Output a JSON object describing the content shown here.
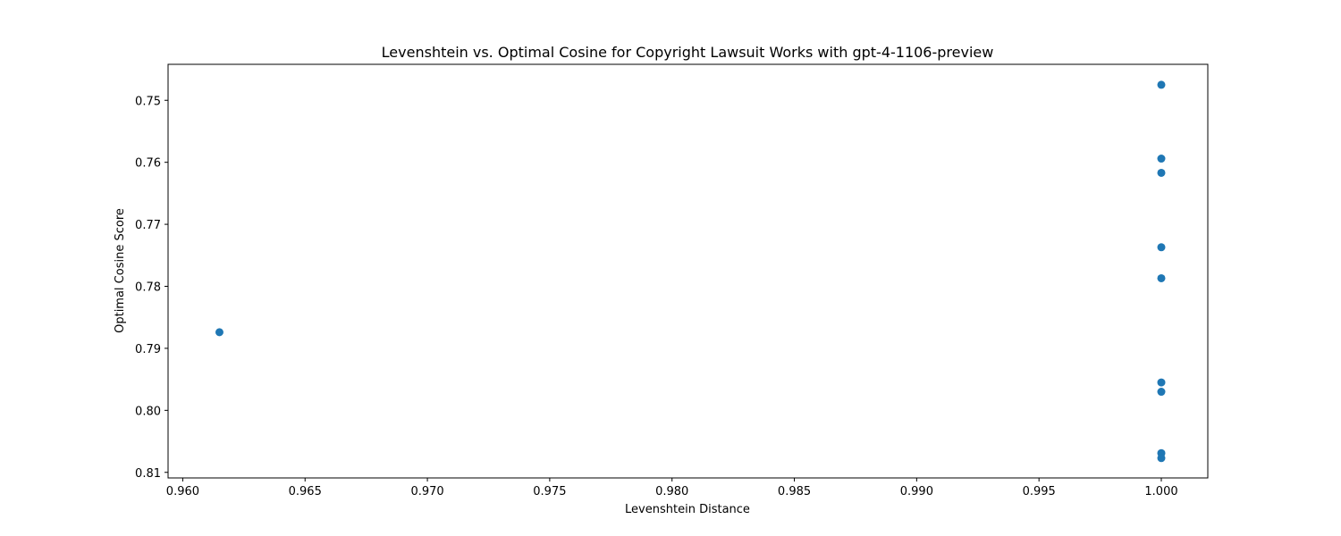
{
  "chart_data": {
    "type": "scatter",
    "title": "Levenshtein vs. Optimal Cosine for Copyright Lawsuit Works with gpt-4-1106-preview",
    "xlabel": "Levenshtein Distance",
    "ylabel": "Optimal Cosine Score",
    "xlim": [
      0.9594,
      1.0019
    ],
    "ylim": [
      0.8109,
      0.7442
    ],
    "y_inverted": true,
    "xticks": [
      0.96,
      0.965,
      0.97,
      0.975,
      0.98,
      0.985,
      0.99,
      0.995,
      1.0
    ],
    "xtick_labels": [
      "0.960",
      "0.965",
      "0.970",
      "0.975",
      "0.980",
      "0.985",
      "0.990",
      "0.995",
      "1.000"
    ],
    "yticks": [
      0.75,
      0.76,
      0.77,
      0.78,
      0.79,
      0.8,
      0.81
    ],
    "ytick_labels": [
      "0.75",
      "0.76",
      "0.77",
      "0.78",
      "0.79",
      "0.80",
      "0.81"
    ],
    "grid": false,
    "marker_color": "#1f77b4",
    "points": [
      {
        "x": 1.0,
        "y": 0.7475
      },
      {
        "x": 1.0,
        "y": 0.7594
      },
      {
        "x": 1.0,
        "y": 0.7617
      },
      {
        "x": 1.0,
        "y": 0.7737
      },
      {
        "x": 1.0,
        "y": 0.7787
      },
      {
        "x": 0.9615,
        "y": 0.7874
      },
      {
        "x": 1.0,
        "y": 0.7955
      },
      {
        "x": 1.0,
        "y": 0.797
      },
      {
        "x": 1.0,
        "y": 0.8069
      },
      {
        "x": 1.0,
        "y": 0.8077
      }
    ]
  }
}
